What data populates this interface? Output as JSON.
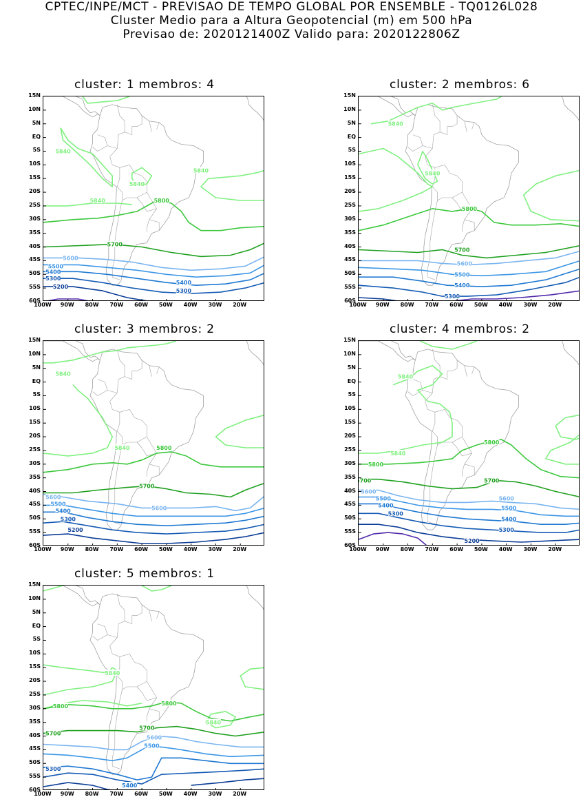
{
  "header": {
    "line1": "CPTEC/INPE/MCT - PREVISAO DE TEMPO GLOBAL POR ENSEMBLE - TQ0126L028",
    "line2": "Cluster Medio para a Altura Geopotencial (m) em 500 hPa",
    "line3": "Previsao de: 2020121400Z    Valido para: 2020122806Z"
  },
  "axes": {
    "y_ticks": [
      "15N",
      "10N",
      "5N",
      "EQ",
      "5S",
      "10S",
      "15S",
      "20S",
      "25S",
      "30S",
      "35S",
      "40S",
      "45S",
      "50S",
      "55S",
      "60S"
    ],
    "x_ticks": [
      "100W",
      "90W",
      "80W",
      "70W",
      "60W",
      "50W",
      "40W",
      "30W",
      "20W"
    ],
    "lat_range": [
      15,
      -60
    ],
    "lon_range": [
      -100,
      -10
    ]
  },
  "contour_colors": {
    "5840": "#80f080",
    "5800": "#3cc83c",
    "5700": "#1ea01e",
    "5600": "#78b4f0",
    "5500": "#3c96e6",
    "5400": "#1e78d2",
    "5300": "#145ab4",
    "5200": "#0a3c96",
    "5100": "#5028aa"
  },
  "land_color": "#a0a0a0",
  "panels": [
    {
      "title": "cluster: 1   membros: 4",
      "labels": [
        {
          "text": "5840",
          "lon": -92,
          "lat": -5
        },
        {
          "text": "5840",
          "lon": -62,
          "lat": -17
        },
        {
          "text": "5840",
          "lon": -36,
          "lat": -12
        },
        {
          "text": "5840",
          "lon": -78,
          "lat": -23
        },
        {
          "text": "5800",
          "lon": -52,
          "lat": -23
        },
        {
          "text": "5700",
          "lon": -71,
          "lat": -39
        },
        {
          "text": "5600",
          "lon": -89,
          "lat": -44
        },
        {
          "text": "5500",
          "lon": -95,
          "lat": -47
        },
        {
          "text": "5400",
          "lon": -96,
          "lat": -49
        },
        {
          "text": "5300",
          "lon": -96,
          "lat": -51.5
        },
        {
          "text": "5200",
          "lon": -93,
          "lat": -54.5
        },
        {
          "text": "5400",
          "lon": -43,
          "lat": -53
        },
        {
          "text": "5300",
          "lon": -43,
          "lat": -56
        }
      ]
    },
    {
      "title": "cluster: 2   membros: 6",
      "labels": [
        {
          "text": "5840",
          "lon": -85,
          "lat": 5
        },
        {
          "text": "5840",
          "lon": -70,
          "lat": -13
        },
        {
          "text": "5800",
          "lon": -55,
          "lat": -26
        },
        {
          "text": "5700",
          "lon": -58,
          "lat": -41
        },
        {
          "text": "5600",
          "lon": -57,
          "lat": -46
        },
        {
          "text": "5500",
          "lon": -58,
          "lat": -50
        },
        {
          "text": "5400",
          "lon": -58,
          "lat": -54
        },
        {
          "text": "5300",
          "lon": -62,
          "lat": -58
        }
      ]
    },
    {
      "title": "cluster: 3   membros: 2",
      "labels": [
        {
          "text": "5840",
          "lon": -92,
          "lat": 3
        },
        {
          "text": "5840",
          "lon": -68,
          "lat": -24
        },
        {
          "text": "5800",
          "lon": -51,
          "lat": -24
        },
        {
          "text": "5700",
          "lon": -58,
          "lat": -38
        },
        {
          "text": "5600",
          "lon": -96,
          "lat": -42
        },
        {
          "text": "5500",
          "lon": -94,
          "lat": -44.5
        },
        {
          "text": "5600",
          "lon": -53,
          "lat": -46
        },
        {
          "text": "5400",
          "lon": -92,
          "lat": -47
        },
        {
          "text": "5300",
          "lon": -90,
          "lat": -50
        },
        {
          "text": "5200",
          "lon": -87,
          "lat": -54
        }
      ]
    },
    {
      "title": "cluster: 4   membros: 2",
      "labels": [
        {
          "text": "5840",
          "lon": -81,
          "lat": 2
        },
        {
          "text": "5800",
          "lon": -46,
          "lat": -22
        },
        {
          "text": "5840",
          "lon": -84,
          "lat": -26
        },
        {
          "text": "5800",
          "lon": -93,
          "lat": -30
        },
        {
          "text": "5700",
          "lon": -98,
          "lat": -36
        },
        {
          "text": "5700",
          "lon": -46,
          "lat": -36
        },
        {
          "text": "5600",
          "lon": -96,
          "lat": -40
        },
        {
          "text": "5500",
          "lon": -90,
          "lat": -42.5
        },
        {
          "text": "5600",
          "lon": -40,
          "lat": -42.5
        },
        {
          "text": "5400",
          "lon": -89,
          "lat": -45
        },
        {
          "text": "5300",
          "lon": -85,
          "lat": -48
        },
        {
          "text": "5500",
          "lon": -39,
          "lat": -46
        },
        {
          "text": "5400",
          "lon": -39,
          "lat": -50
        },
        {
          "text": "5300",
          "lon": -40,
          "lat": -54
        },
        {
          "text": "5200",
          "lon": -54,
          "lat": -58
        }
      ]
    },
    {
      "title": "cluster: 5   membros: 1",
      "labels": [
        {
          "text": "5840",
          "lon": -72,
          "lat": -17
        },
        {
          "text": "5800",
          "lon": -93,
          "lat": -29
        },
        {
          "text": "5800",
          "lon": -49,
          "lat": -28
        },
        {
          "text": "5840",
          "lon": -31,
          "lat": -35
        },
        {
          "text": "5700",
          "lon": -96,
          "lat": -39
        },
        {
          "text": "5700",
          "lon": -58,
          "lat": -37
        },
        {
          "text": "5600",
          "lon": -55,
          "lat": -40.5
        },
        {
          "text": "5500",
          "lon": -56,
          "lat": -43.5
        },
        {
          "text": "5300",
          "lon": -96,
          "lat": -52
        },
        {
          "text": "5400",
          "lon": -65,
          "lat": -58
        }
      ]
    }
  ]
}
